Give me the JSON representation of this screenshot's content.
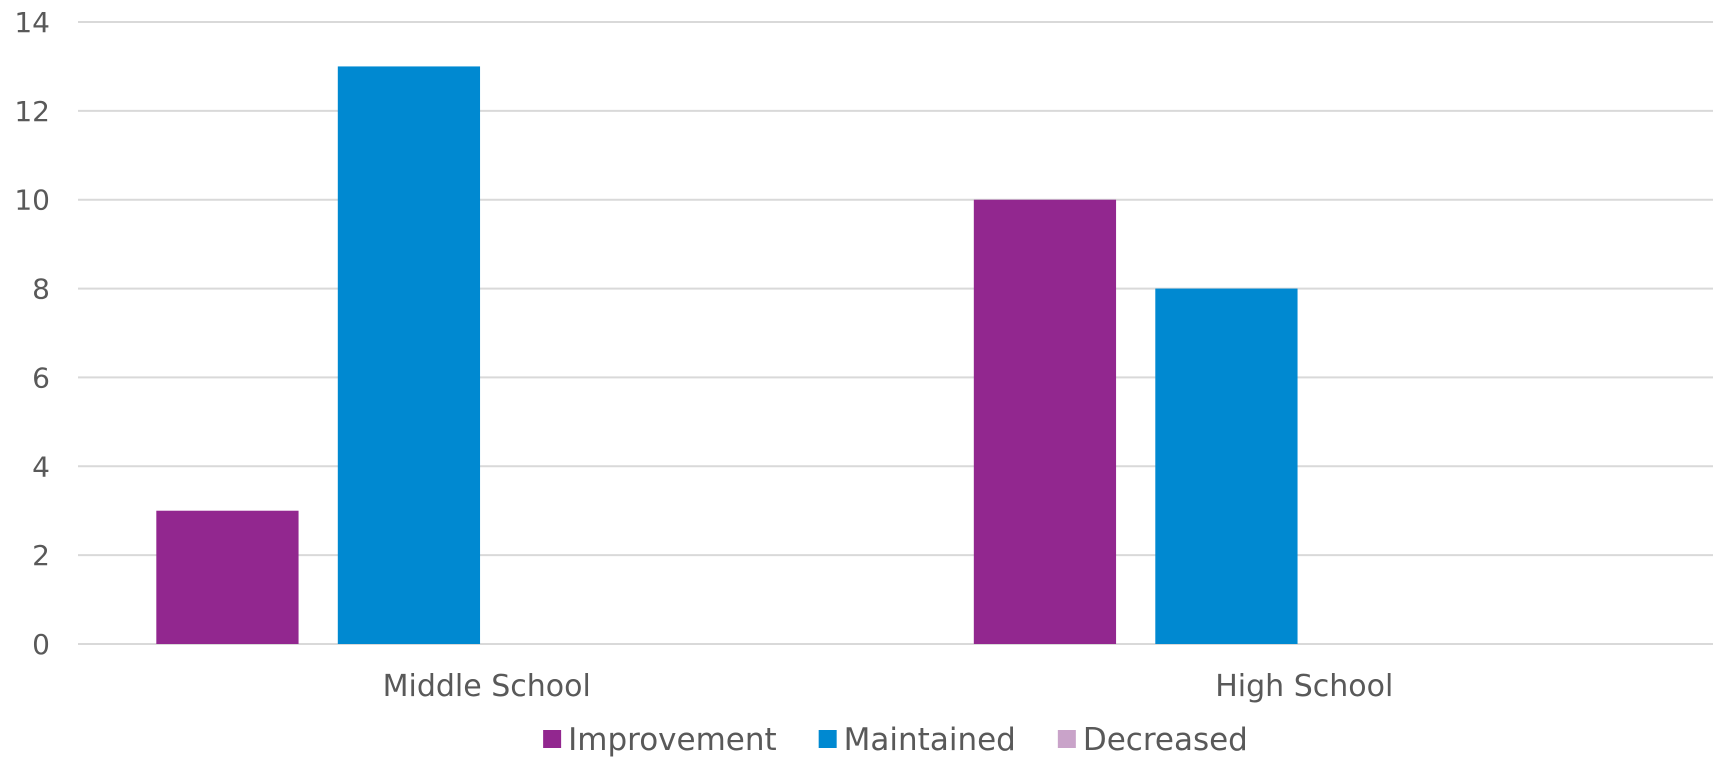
{
  "chart_data": {
    "type": "bar",
    "categories": [
      "Middle School",
      "High School"
    ],
    "series": [
      {
        "name": "Improvement",
        "values": [
          3,
          10
        ],
        "color": "#92278F"
      },
      {
        "name": "Maintained",
        "values": [
          13,
          8
        ],
        "color": "#0089D1"
      },
      {
        "name": "Decreased",
        "values": [
          0,
          0
        ],
        "color": "#C9A3C9"
      }
    ],
    "ylim": [
      0,
      14
    ],
    "yticks": [
      0,
      2,
      4,
      6,
      8,
      10,
      12,
      14
    ],
    "grid": true,
    "legend": "bottom",
    "title": "",
    "xlabel": "",
    "ylabel": ""
  }
}
